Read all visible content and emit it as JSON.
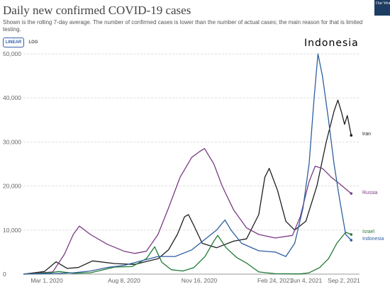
{
  "header": {
    "title": "Daily new confirmed COVID-19 cases",
    "subtitle": "Shown is the rolling 7-day average. The number of confirmed cases is lower than the number of actual cases; the main reason for that is limited testing.",
    "logo_text": "Our World in Data"
  },
  "controls": {
    "linear_label": "LINEAR",
    "log_label": "LOG",
    "selected": "LINEAR"
  },
  "overlay_text": "Indonesia",
  "colors": {
    "Iran": "#1f1f1f",
    "Russia": "#7a3b83",
    "Israel": "#1e7a35",
    "Indonesia": "#2e5f9f"
  },
  "chart_data": {
    "type": "line",
    "title": "Daily new confirmed COVID-19 cases",
    "x_ticks": [
      "Mar 1, 2020",
      "Aug 8, 2020",
      "Nov 16, 2020",
      "Feb 24, 2021",
      "Jun 4, 2021",
      "Sep 2, 2021"
    ],
    "x_range": [
      "2020-02-01",
      "2021-09-30"
    ],
    "y_ticks": [
      "0",
      "10,000",
      "20,000",
      "30,000",
      "40,000",
      "50,000"
    ],
    "ylim": [
      0,
      50000
    ],
    "grid": true,
    "series": [
      {
        "name": "Iran",
        "points": [
          [
            "2020-02-01",
            0
          ],
          [
            "2020-03-10",
            600
          ],
          [
            "2020-03-31",
            2800
          ],
          [
            "2020-04-20",
            1300
          ],
          [
            "2020-05-10",
            1500
          ],
          [
            "2020-06-05",
            3000
          ],
          [
            "2020-07-15",
            2400
          ],
          [
            "2020-08-20",
            2200
          ],
          [
            "2020-09-15",
            3000
          ],
          [
            "2020-10-01",
            3500
          ],
          [
            "2020-10-20",
            5500
          ],
          [
            "2020-11-05",
            9000
          ],
          [
            "2020-11-18",
            13000
          ],
          [
            "2020-11-25",
            13500
          ],
          [
            "2020-12-05",
            11000
          ],
          [
            "2020-12-20",
            7000
          ],
          [
            "2021-01-15",
            6000
          ],
          [
            "2021-02-15",
            7500
          ],
          [
            "2021-03-10",
            8000
          ],
          [
            "2021-04-01",
            13500
          ],
          [
            "2021-04-12",
            22000
          ],
          [
            "2021-04-20",
            24000
          ],
          [
            "2021-05-05",
            19000
          ],
          [
            "2021-05-20",
            12000
          ],
          [
            "2021-06-05",
            10000
          ],
          [
            "2021-06-25",
            12000
          ],
          [
            "2021-07-15",
            20000
          ],
          [
            "2021-08-01",
            30000
          ],
          [
            "2021-08-15",
            37000
          ],
          [
            "2021-08-22",
            39500
          ],
          [
            "2021-08-28",
            37000
          ],
          [
            "2021-09-03",
            34000
          ],
          [
            "2021-09-08",
            36000
          ],
          [
            "2021-09-15",
            31500
          ]
        ]
      },
      {
        "name": "Russia",
        "points": [
          [
            "2020-02-01",
            0
          ],
          [
            "2020-03-25",
            500
          ],
          [
            "2020-04-15",
            4500
          ],
          [
            "2020-05-01",
            9000
          ],
          [
            "2020-05-12",
            10900
          ],
          [
            "2020-06-01",
            9000
          ],
          [
            "2020-07-01",
            6800
          ],
          [
            "2020-08-01",
            5200
          ],
          [
            "2020-08-20",
            4700
          ],
          [
            "2020-09-10",
            5200
          ],
          [
            "2020-10-01",
            9000
          ],
          [
            "2020-10-20",
            15000
          ],
          [
            "2020-11-10",
            22000
          ],
          [
            "2020-12-01",
            26500
          ],
          [
            "2020-12-15",
            27800
          ],
          [
            "2020-12-24",
            28500
          ],
          [
            "2021-01-10",
            25000
          ],
          [
            "2021-01-25",
            20000
          ],
          [
            "2021-02-15",
            14500
          ],
          [
            "2021-03-10",
            10500
          ],
          [
            "2021-04-01",
            9000
          ],
          [
            "2021-05-01",
            8200
          ],
          [
            "2021-06-01",
            8800
          ],
          [
            "2021-06-15",
            13000
          ],
          [
            "2021-07-01",
            21000
          ],
          [
            "2021-07-12",
            24500
          ],
          [
            "2021-07-25",
            24000
          ],
          [
            "2021-08-10",
            22000
          ],
          [
            "2021-08-25",
            20500
          ],
          [
            "2021-09-15",
            18300
          ]
        ]
      },
      {
        "name": "Israel",
        "points": [
          [
            "2020-02-01",
            0
          ],
          [
            "2020-03-20",
            300
          ],
          [
            "2020-04-05",
            600
          ],
          [
            "2020-05-01",
            200
          ],
          [
            "2020-06-01",
            300
          ],
          [
            "2020-06-25",
            1000
          ],
          [
            "2020-07-15",
            1600
          ],
          [
            "2020-08-15",
            1700
          ],
          [
            "2020-09-10",
            3500
          ],
          [
            "2020-09-25",
            6200
          ],
          [
            "2020-10-08",
            2700
          ],
          [
            "2020-10-25",
            1000
          ],
          [
            "2020-11-15",
            700
          ],
          [
            "2020-12-05",
            1500
          ],
          [
            "2020-12-25",
            4000
          ],
          [
            "2021-01-10",
            7500
          ],
          [
            "2021-01-17",
            8800
          ],
          [
            "2021-02-01",
            6000
          ],
          [
            "2021-02-20",
            3800
          ],
          [
            "2021-03-10",
            2500
          ],
          [
            "2021-04-01",
            500
          ],
          [
            "2021-05-01",
            100
          ],
          [
            "2021-06-15",
            50
          ],
          [
            "2021-07-01",
            300
          ],
          [
            "2021-07-20",
            1500
          ],
          [
            "2021-08-05",
            3500
          ],
          [
            "2021-08-20",
            7000
          ],
          [
            "2021-09-05",
            9500
          ],
          [
            "2021-09-15",
            9000
          ]
        ]
      },
      {
        "name": "Indonesia",
        "points": [
          [
            "2020-02-01",
            0
          ],
          [
            "2020-04-01",
            150
          ],
          [
            "2020-05-01",
            300
          ],
          [
            "2020-06-01",
            700
          ],
          [
            "2020-07-01",
            1500
          ],
          [
            "2020-08-01",
            2000
          ],
          [
            "2020-09-01",
            3000
          ],
          [
            "2020-10-01",
            4000
          ],
          [
            "2020-11-01",
            4000
          ],
          [
            "2020-12-01",
            5500
          ],
          [
            "2021-01-15",
            10000
          ],
          [
            "2021-01-30",
            12300
          ],
          [
            "2021-02-10",
            10000
          ],
          [
            "2021-03-01",
            7000
          ],
          [
            "2021-04-01",
            5300
          ],
          [
            "2021-05-01",
            5000
          ],
          [
            "2021-05-20",
            4000
          ],
          [
            "2021-06-05",
            7000
          ],
          [
            "2021-06-20",
            15000
          ],
          [
            "2021-07-01",
            25000
          ],
          [
            "2021-07-10",
            40000
          ],
          [
            "2021-07-17",
            50000
          ],
          [
            "2021-07-25",
            45000
          ],
          [
            "2021-08-05",
            35000
          ],
          [
            "2021-08-15",
            25000
          ],
          [
            "2021-08-25",
            17000
          ],
          [
            "2021-09-05",
            9000
          ],
          [
            "2021-09-15",
            7700
          ]
        ]
      }
    ],
    "series_labels": [
      "Iran",
      "Russia",
      "Israel",
      "Indonesia"
    ]
  }
}
